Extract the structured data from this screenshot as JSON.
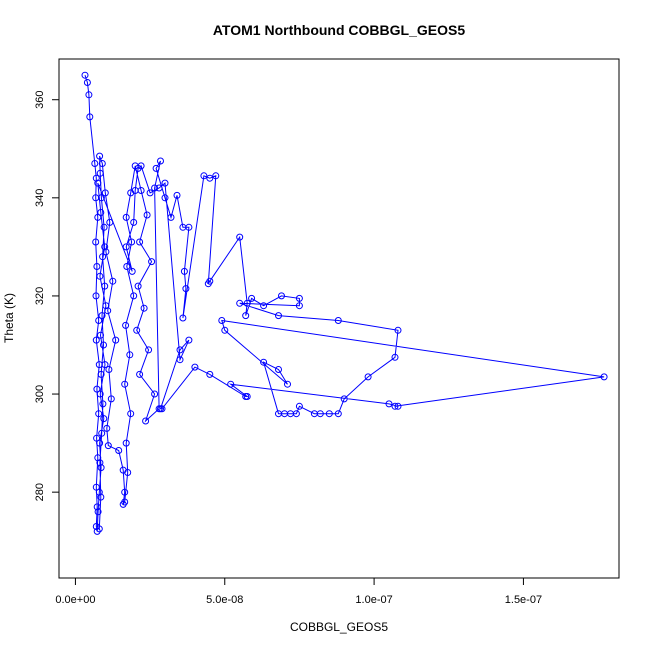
{
  "chart_data": {
    "type": "scatter",
    "title": "ATOM1 Northbound COBBGL_GEOS5",
    "xlabel": "COBBGL_GEOS5",
    "ylabel": "Theta (K)",
    "xlim": [
      -5.5e-09,
      1.82e-07
    ],
    "ylim": [
      262.5,
      368.3
    ],
    "x_ticks": [
      0,
      5e-08,
      1e-07,
      1.5e-07
    ],
    "x_tick_labels": [
      "0.0e+00",
      "5.0e-08",
      "1.0e-07",
      "1.5e-07"
    ],
    "y_ticks": [
      280,
      300,
      320,
      340,
      360
    ],
    "y_tick_labels": [
      "280",
      "300",
      "320",
      "340",
      "360"
    ],
    "grid": false,
    "legend": "none",
    "line_color": "#0000ff",
    "marker": "open-circle",
    "series": [
      {
        "points": [
          [
            3.2e-09,
            365
          ],
          [
            4e-09,
            363.5
          ],
          [
            4.5e-09,
            361
          ],
          [
            4.8e-09,
            356.5
          ],
          [
            6.5e-09,
            347
          ],
          [
            7e-09,
            344
          ],
          [
            6.8e-09,
            340
          ],
          [
            7.5e-09,
            336
          ],
          [
            6.8e-09,
            331
          ],
          [
            7.2e-09,
            326
          ],
          [
            6.9e-09,
            320
          ],
          [
            7.8e-09,
            315
          ],
          [
            7e-09,
            311
          ],
          [
            8e-09,
            306
          ],
          [
            7.2e-09,
            301
          ],
          [
            7.8e-09,
            296
          ],
          [
            7.1e-09,
            291
          ],
          [
            7.5e-09,
            287
          ],
          [
            7e-09,
            281
          ],
          [
            7.3e-09,
            277
          ],
          [
            7e-09,
            273
          ],
          [
            8e-09,
            272.5
          ],
          [
            8.5e-09,
            279
          ],
          [
            8.2e-09,
            286
          ],
          [
            8.8e-09,
            292
          ],
          [
            9.2e-09,
            298
          ],
          [
            8.6e-09,
            304
          ],
          [
            9.4e-09,
            310
          ],
          [
            8.9e-09,
            316
          ],
          [
            9.8e-09,
            322
          ],
          [
            9.1e-09,
            328
          ],
          [
            9.6e-09,
            334
          ],
          [
            8.7e-09,
            340
          ],
          [
            8.3e-09,
            345
          ],
          [
            8.1e-09,
            348.5
          ],
          [
            9e-09,
            347
          ],
          [
            1e-08,
            341
          ],
          [
            1.15e-08,
            335
          ],
          [
            1.02e-08,
            329
          ],
          [
            1.25e-08,
            323
          ],
          [
            1.08e-08,
            317
          ],
          [
            1.35e-08,
            311
          ],
          [
            1.12e-08,
            305
          ],
          [
            1.2e-08,
            299
          ],
          [
            1.05e-08,
            293
          ],
          [
            1.1e-08,
            289.5
          ],
          [
            1.45e-08,
            288.5
          ],
          [
            1.6e-08,
            284.5
          ],
          [
            1.65e-08,
            280
          ],
          [
            1.6e-08,
            277.5
          ],
          [
            1.65e-08,
            278
          ],
          [
            1.75e-08,
            284
          ],
          [
            1.7e-08,
            290
          ],
          [
            1.85e-08,
            296
          ],
          [
            1.65e-08,
            302
          ],
          [
            1.82e-08,
            308
          ],
          [
            1.68e-08,
            314
          ],
          [
            1.95e-08,
            320
          ],
          [
            1.72e-08,
            326
          ],
          [
            1.88e-08,
            331
          ],
          [
            1.7e-08,
            336
          ],
          [
            1.85e-08,
            341
          ],
          [
            2e-08,
            346.5
          ],
          [
            2.2e-08,
            341.5
          ],
          [
            2.4e-08,
            336.5
          ],
          [
            2.15e-08,
            331
          ],
          [
            2.55e-08,
            327
          ],
          [
            2.1e-08,
            322
          ],
          [
            2.3e-08,
            317.5
          ],
          [
            2.05e-08,
            313
          ],
          [
            2.45e-08,
            309
          ],
          [
            2.15e-08,
            304
          ],
          [
            2.65e-08,
            300
          ],
          [
            2.35e-08,
            294.5
          ],
          [
            2.8e-08,
            297
          ],
          [
            2.65e-08,
            342
          ],
          [
            2.85e-08,
            347.5
          ],
          [
            2.7e-08,
            346
          ],
          [
            3e-08,
            340
          ],
          [
            3.2e-08,
            336
          ],
          [
            3.4e-08,
            340.5
          ],
          [
            3.6e-08,
            334
          ],
          [
            3.8e-08,
            334
          ],
          [
            3.65e-08,
            325
          ],
          [
            3.7e-08,
            321.5
          ],
          [
            3.6e-08,
            315.5
          ],
          [
            4.3e-08,
            344.5
          ],
          [
            4.5e-08,
            344
          ],
          [
            4.7e-08,
            344.5
          ],
          [
            4.45e-08,
            322.5
          ],
          [
            4.5e-08,
            323
          ],
          [
            5.5e-08,
            332
          ],
          [
            5.75e-08,
            318.5
          ],
          [
            5.7e-08,
            316
          ],
          [
            5.9e-08,
            319.5
          ],
          [
            6.3e-08,
            318
          ],
          [
            6.9e-08,
            320
          ],
          [
            7.5e-08,
            319.5
          ],
          [
            7.5e-08,
            318
          ],
          [
            5.5e-08,
            318.5
          ],
          [
            6.8e-08,
            316
          ],
          [
            8.8e-08,
            315
          ],
          [
            1.08e-07,
            313
          ],
          [
            1.07e-07,
            307.5
          ],
          [
            9.8e-08,
            303.5
          ],
          [
            9e-08,
            299
          ],
          [
            8.8e-08,
            296
          ],
          [
            8.5e-08,
            296
          ],
          [
            8.2e-08,
            296
          ],
          [
            8e-08,
            296
          ],
          [
            7.5e-08,
            297.5
          ],
          [
            7.4e-08,
            296
          ],
          [
            7.2e-08,
            296
          ],
          [
            7e-08,
            296
          ],
          [
            6.8e-08,
            296
          ],
          [
            6.3e-08,
            306.5
          ],
          [
            6.8e-08,
            305
          ],
          [
            7.1e-08,
            302
          ],
          [
            5e-08,
            313
          ],
          [
            4.9e-08,
            315
          ],
          [
            1.77e-07,
            303.5
          ],
          [
            1.07e-07,
            297.5
          ],
          [
            1.08e-07,
            297.5
          ],
          [
            1.05e-07,
            298
          ],
          [
            5.2e-08,
            302
          ],
          [
            5.75e-08,
            299.5
          ],
          [
            5.7e-08,
            299.5
          ],
          [
            4.5e-08,
            304
          ],
          [
            4e-08,
            305.5
          ],
          [
            2.9e-08,
            297
          ],
          [
            2.85e-08,
            297
          ],
          [
            3.5e-08,
            309
          ],
          [
            3.8e-08,
            311
          ],
          [
            3.5e-08,
            307
          ],
          [
            3e-08,
            343
          ],
          [
            2.8e-08,
            342
          ],
          [
            2.5e-08,
            341
          ],
          [
            2.2e-08,
            346.5
          ],
          [
            2.1e-08,
            346
          ],
          [
            2e-08,
            341.5
          ],
          [
            1.95e-08,
            335
          ],
          [
            1.7e-08,
            330
          ],
          [
            1.9e-08,
            325
          ],
          [
            7.5e-09,
            343
          ],
          [
            8.5e-09,
            337
          ],
          [
            9.8e-09,
            330
          ],
          [
            8.2e-09,
            324
          ],
          [
            1.02e-08,
            318
          ],
          [
            8.4e-09,
            312
          ],
          [
            9.9e-09,
            306
          ],
          [
            8.3e-09,
            300
          ],
          [
            9.5e-09,
            295
          ],
          [
            8.1e-09,
            290
          ],
          [
            8.6e-09,
            285
          ],
          [
            8e-09,
            280
          ],
          [
            7.6e-09,
            276
          ],
          [
            7.3e-09,
            272
          ]
        ]
      }
    ]
  }
}
